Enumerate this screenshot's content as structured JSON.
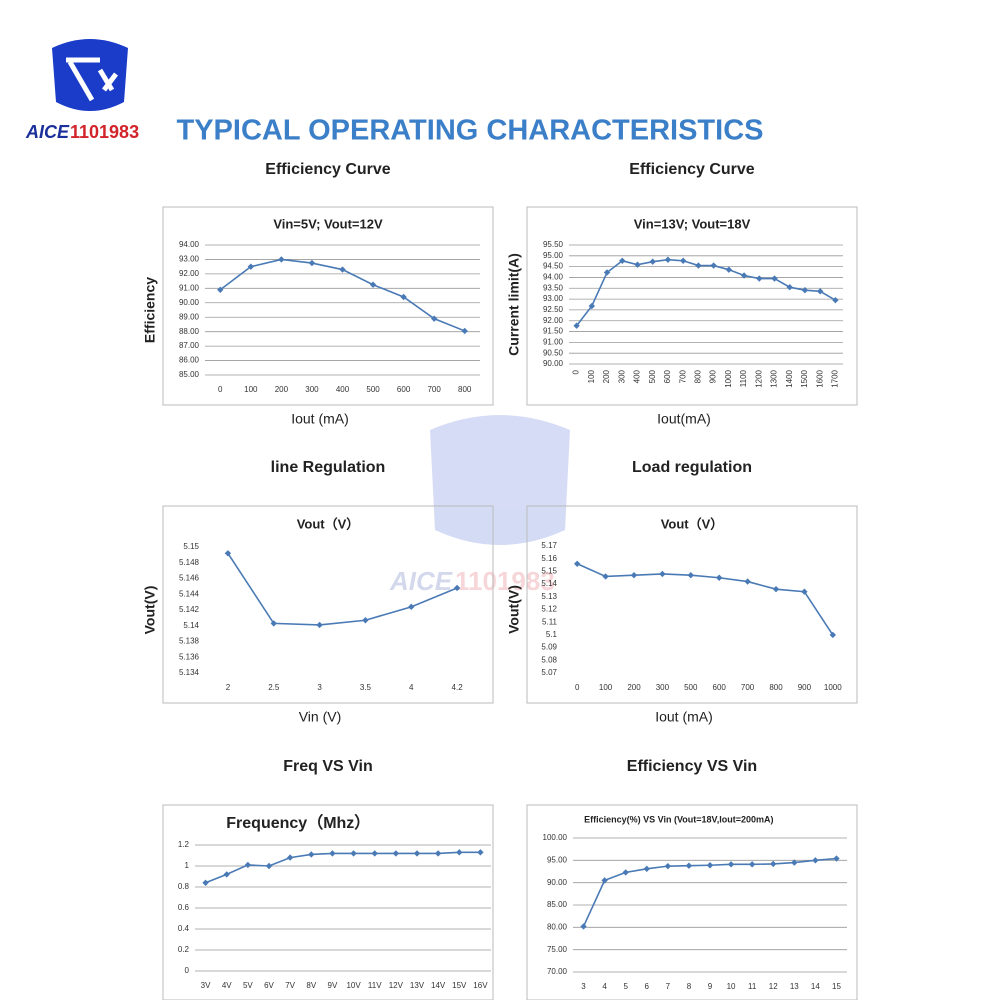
{
  "header": {
    "logo": {
      "brand": "AICE",
      "number": "1101983"
    },
    "title": "TYPICAL OPERATING CHARACTERISTICS"
  },
  "chart_data": [
    {
      "type": "line",
      "title": "Efficiency Curve",
      "subtitle": "Vin=5V; Vout=12V",
      "y_label": "Efficiency",
      "x_label": "Iout (mA)",
      "categories": [
        "0",
        "100",
        "200",
        "300",
        "400",
        "500",
        "600",
        "700",
        "800"
      ],
      "values": [
        90.9,
        92.5,
        93.0,
        92.75,
        92.3,
        91.25,
        90.4,
        88.9,
        88.05
      ],
      "color": "#4a7ab5",
      "grid": true,
      "ylim": [
        85,
        94
      ],
      "yticks": [
        {
          "value": 85,
          "label": "85.00"
        },
        {
          "value": 86,
          "label": "86.00"
        },
        {
          "value": 87,
          "label": "87.00"
        },
        {
          "value": 88,
          "label": "88.00"
        },
        {
          "value": 89,
          "label": "89.00"
        },
        {
          "value": 90,
          "label": "90.00"
        },
        {
          "value": 91,
          "label": "91.00"
        },
        {
          "value": 92,
          "label": "92.00"
        },
        {
          "value": 93,
          "label": "93.00"
        },
        {
          "value": 94,
          "label": "94.00"
        }
      ]
    },
    {
      "type": "line",
      "title": "Efficiency Curve",
      "subtitle": "Vin=13V; Vout=18V",
      "y_label": "Current limit(A)",
      "x_label": "Iout(mA)",
      "categories": [
        "0",
        "100",
        "200",
        "300",
        "400",
        "500",
        "600",
        "700",
        "800",
        "900",
        "1000",
        "1100",
        "1200",
        "1300",
        "1400",
        "1500",
        "1600",
        "1700"
      ],
      "values": [
        91.77,
        92.68,
        94.23,
        94.77,
        94.59,
        94.73,
        94.82,
        94.77,
        94.55,
        94.55,
        94.36,
        94.09,
        93.95,
        93.95,
        93.55,
        93.41,
        93.36,
        92.95
      ],
      "color": "#4a7ab5",
      "grid": true,
      "ylim": [
        90,
        95.5
      ],
      "yticks": [
        {
          "value": 90,
          "label": "90.00"
        },
        {
          "value": 90.5,
          "label": "90.50"
        },
        {
          "value": 91,
          "label": "91.00"
        },
        {
          "value": 91.5,
          "label": "91.50"
        },
        {
          "value": 92,
          "label": "92.00"
        },
        {
          "value": 92.5,
          "label": "92.50"
        },
        {
          "value": 93,
          "label": "93.00"
        },
        {
          "value": 93.5,
          "label": "93.50"
        },
        {
          "value": 94,
          "label": "94.00"
        },
        {
          "value": 94.5,
          "label": "94.50"
        },
        {
          "value": 95,
          "label": "95.00"
        },
        {
          "value": 95.5,
          "label": "95.50"
        }
      ]
    },
    {
      "type": "line",
      "title": "line Regulation",
      "subtitle": "Vout（V）",
      "y_label": "Vout(V)",
      "x_label": "Vin (V)",
      "categories": [
        "2",
        "2.5",
        "3",
        "3.5",
        "4",
        "4.2"
      ],
      "values": [
        5.1492,
        5.1403,
        5.1401,
        5.1407,
        5.1424,
        5.1448
      ],
      "color": "#4a7ab5",
      "grid": false,
      "ylim": [
        5.134,
        5.15
      ],
      "yticks": [
        5.134,
        5.136,
        5.138,
        5.14,
        5.142,
        5.144,
        5.146,
        5.148,
        5.15
      ]
    },
    {
      "type": "line",
      "title": "Load regulation",
      "subtitle": "Vout（V）",
      "y_label": "Vout(V)",
      "x_label": "Iout (mA)",
      "categories": [
        "0",
        "100",
        "200",
        "300",
        "500",
        "600",
        "700",
        "800",
        "900",
        "1000"
      ],
      "values": [
        5.156,
        5.146,
        5.147,
        5.148,
        5.147,
        5.145,
        5.142,
        5.136,
        5.134,
        5.1
      ],
      "color": "#4a7ab5",
      "grid": false,
      "ylim": [
        5.07,
        5.17
      ],
      "yticks": [
        5.07,
        5.08,
        5.09,
        5.1,
        5.11,
        5.12,
        5.13,
        5.14,
        5.15,
        5.16,
        5.17
      ]
    },
    {
      "type": "line",
      "title": "Freq VS Vin",
      "subtitle": "Frequency（Mhz）",
      "categories": [
        "3V",
        "4V",
        "5V",
        "6V",
        "7V",
        "8V",
        "9V",
        "10V",
        "11V",
        "12V",
        "13V",
        "14V",
        "15V",
        "16V"
      ],
      "values": [
        0.84,
        0.92,
        1.01,
        1.0,
        1.08,
        1.11,
        1.12,
        1.12,
        1.12,
        1.12,
        1.12,
        1.12,
        1.13,
        1.13
      ],
      "color": "#4a7ab5",
      "grid": true,
      "ylim": [
        0,
        1.2
      ],
      "yticks": [
        0,
        0.2,
        0.4,
        0.6,
        0.8,
        1,
        1.2
      ]
    },
    {
      "type": "line",
      "title": "Efficiency VS Vin",
      "subtitle": "Efficiency(%) VS Vin (Vout=18V,Iout=200mA)",
      "categories": [
        "3",
        "4",
        "5",
        "6",
        "7",
        "8",
        "9",
        "10",
        "11",
        "12",
        "13",
        "14",
        "15"
      ],
      "values": [
        80.2,
        90.5,
        92.3,
        93.1,
        93.7,
        93.8,
        93.9,
        94.1,
        94.1,
        94.2,
        94.5,
        95.0,
        95.4
      ],
      "color": "#4a7ab5",
      "grid": true,
      "ylim": [
        70,
        100
      ],
      "yticks": [
        {
          "value": 70,
          "label": "70.00"
        },
        {
          "value": 75,
          "label": "75.00"
        },
        {
          "value": 80,
          "label": "80.00"
        },
        {
          "value": 85,
          "label": "85.00"
        },
        {
          "value": 90,
          "label": "90.00"
        },
        {
          "value": 95,
          "label": "95.00"
        },
        {
          "value": 100,
          "label": "100.00"
        }
      ]
    }
  ]
}
